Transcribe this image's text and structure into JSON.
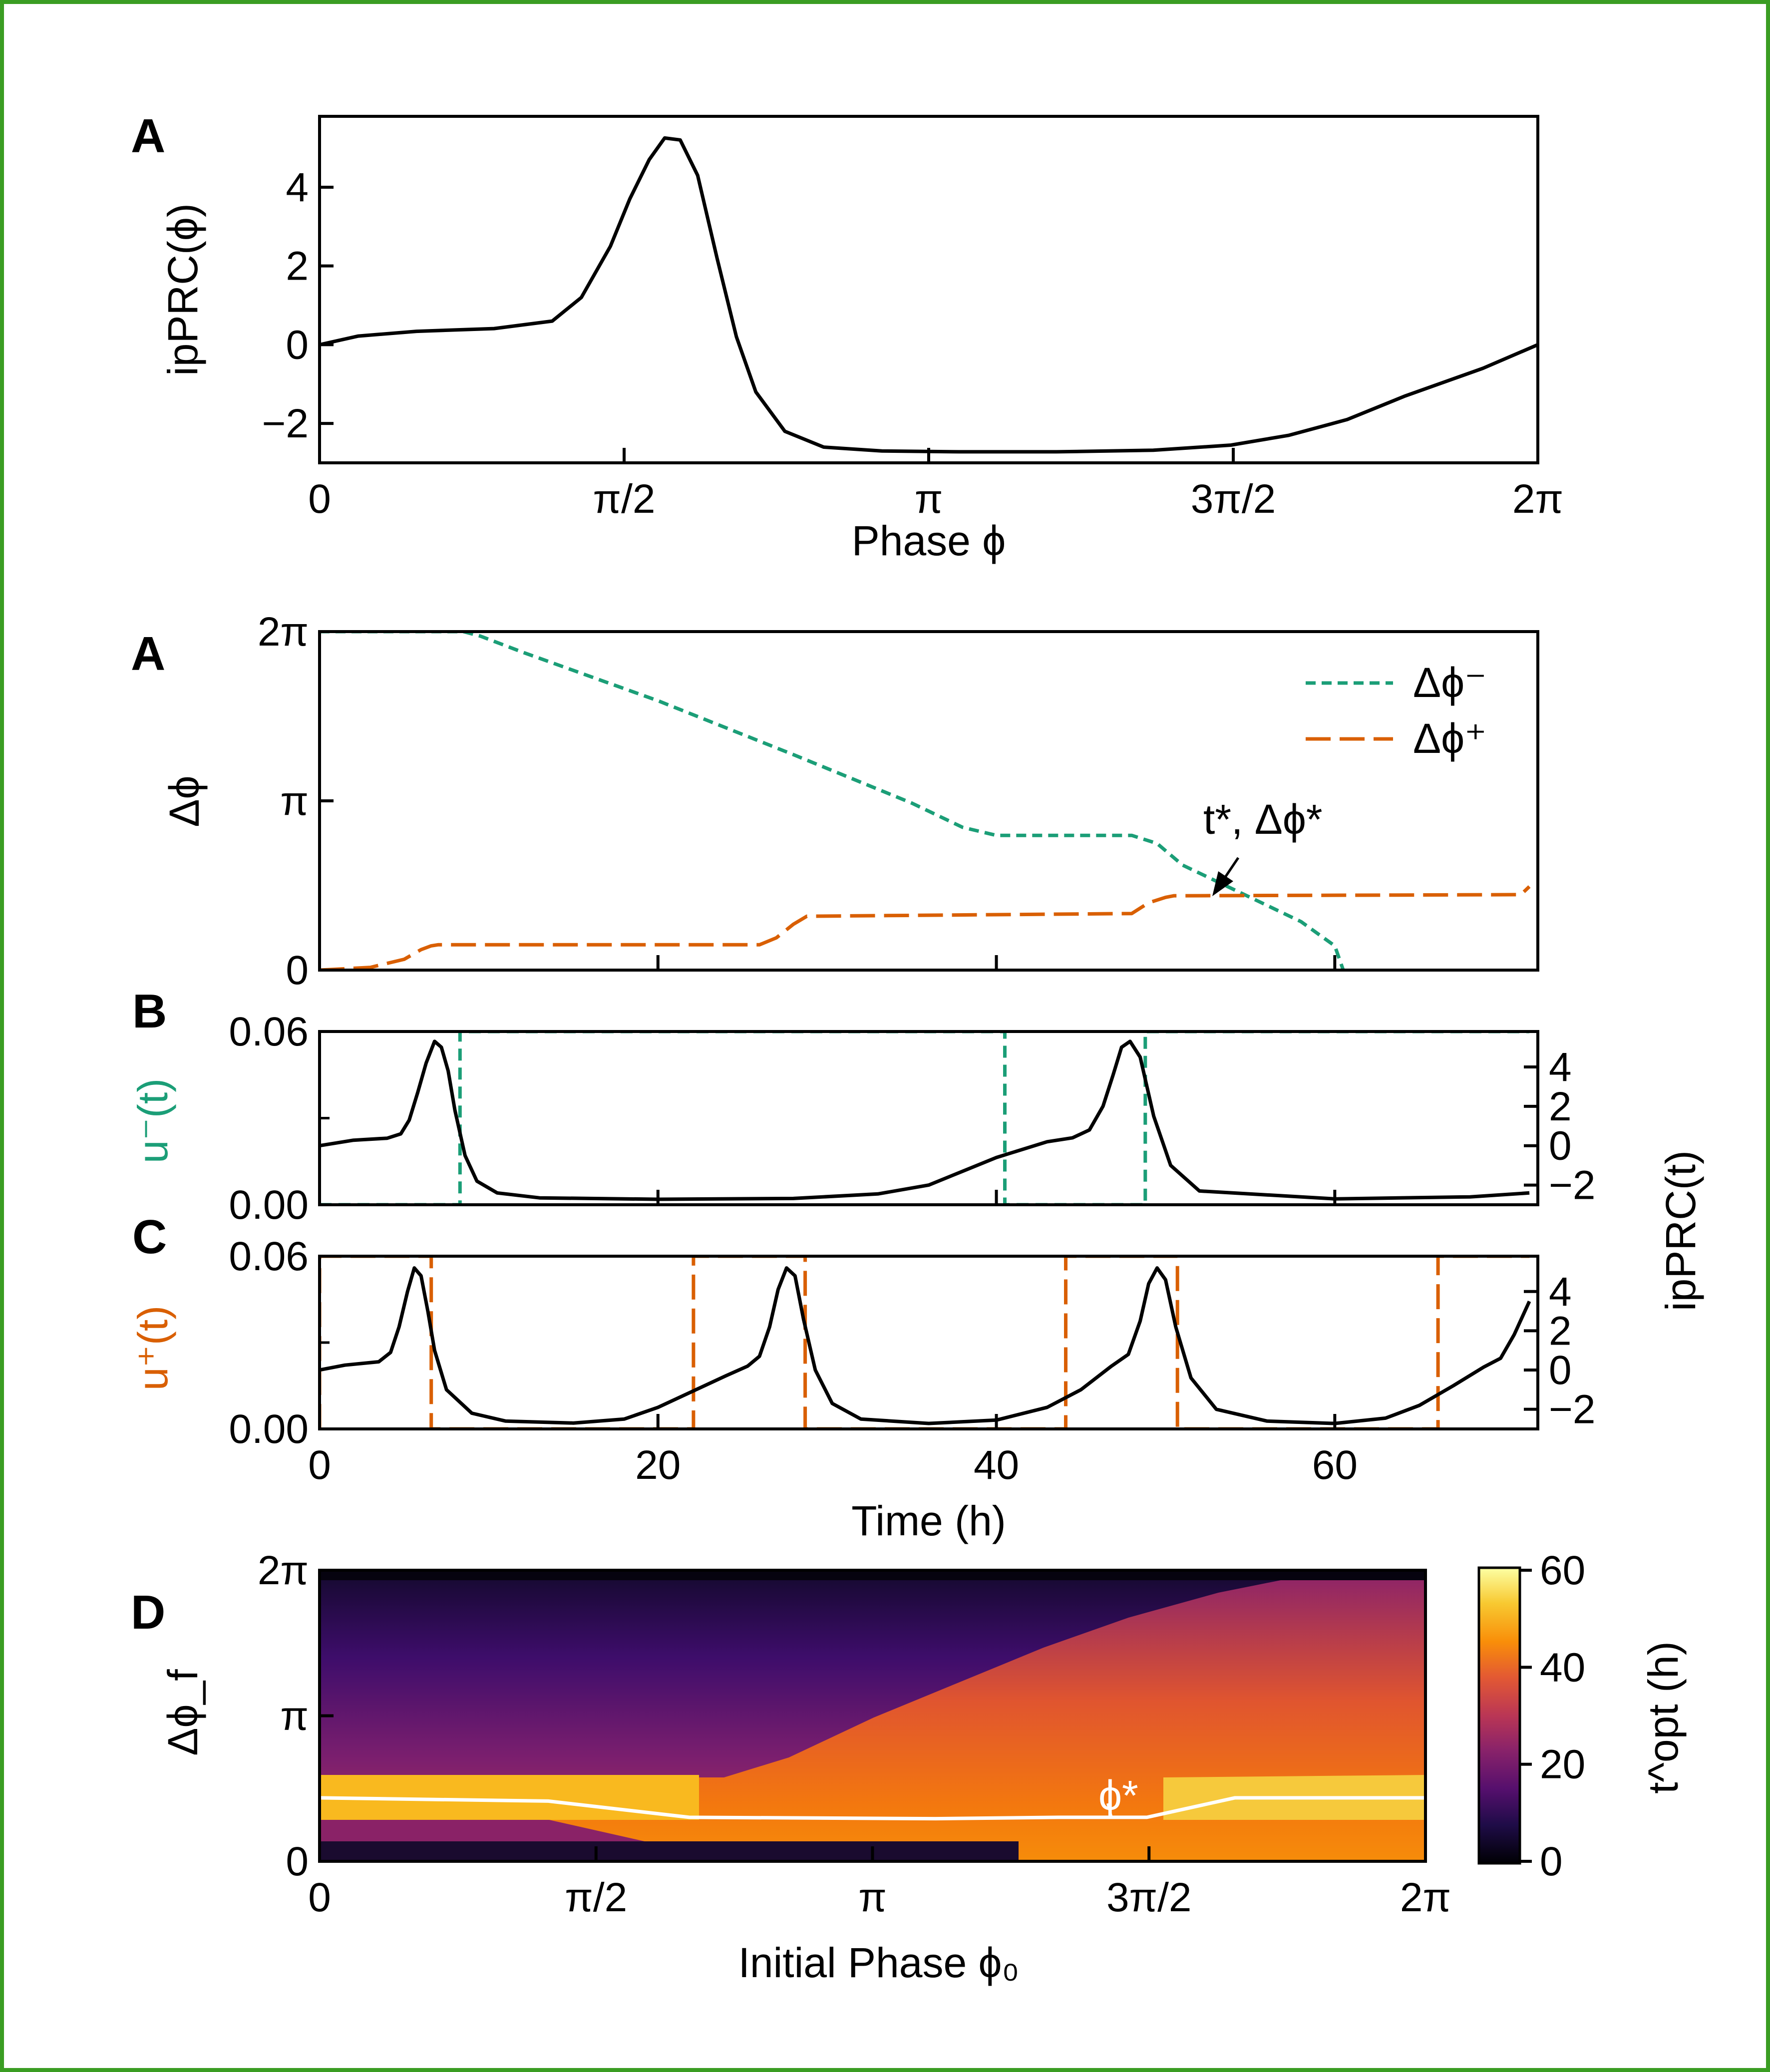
{
  "frame_color": "#3a9d23",
  "colors": {
    "green": "#1b9e77",
    "orange": "#d95f02",
    "black": "#000000",
    "marker": "#ffffff"
  },
  "chart_data": [
    {
      "id": "A",
      "panel_label": "A",
      "type": "line",
      "xlabel": "Phase ϕ",
      "ylabel": "ipPRC(ϕ)",
      "xlim": [
        0,
        6.2832
      ],
      "ylim": [
        -3.0,
        5.8
      ],
      "xticks": [
        "0",
        "π/2",
        "π",
        "3π/2",
        "2π"
      ],
      "yticks": [
        "−2",
        "0",
        "2",
        "4"
      ],
      "series": [
        {
          "color": "#000000",
          "x": [
            0.0,
            0.2,
            0.5,
            0.9,
            1.2,
            1.35,
            1.5,
            1.6,
            1.7,
            1.78,
            1.86,
            1.95,
            2.05,
            2.15,
            2.25,
            2.4,
            2.6,
            2.9,
            3.3,
            3.8,
            4.3,
            4.7,
            5.0,
            5.3,
            5.6,
            6.0,
            6.2832
          ],
          "y": [
            0.0,
            0.22,
            0.34,
            0.41,
            0.6,
            1.2,
            2.5,
            3.7,
            4.7,
            5.25,
            5.2,
            4.3,
            2.2,
            0.2,
            -1.2,
            -2.2,
            -2.6,
            -2.7,
            -2.72,
            -2.72,
            -2.68,
            -2.55,
            -2.3,
            -1.9,
            -1.3,
            -0.6,
            0.0
          ]
        }
      ]
    },
    {
      "id": "A2",
      "panel_label": "A",
      "type": "line",
      "ylabel": "Δϕ",
      "xlim": [
        0,
        72
      ],
      "ylim": [
        0,
        6.2832
      ],
      "yticks": [
        "0",
        "π",
        "2π"
      ],
      "legend_placement": "top-right",
      "annotation": "t*, Δϕ*",
      "annotation_point": [
        51.5,
        1.37
      ],
      "series": [
        {
          "name": "Δϕ⁻",
          "color": "#1b9e77",
          "style": "short-dash",
          "x": [
            0,
            8.5,
            9.5,
            12,
            20,
            28,
            35,
            38,
            40,
            45,
            48,
            49.5,
            51,
            55,
            58,
            60,
            60.5
          ],
          "y": [
            6.2832,
            6.2832,
            6.2,
            5.9,
            5.0,
            4.0,
            3.1,
            2.65,
            2.5,
            2.5,
            2.5,
            2.35,
            1.95,
            1.35,
            0.9,
            0.45,
            0.0
          ]
        },
        {
          "name": "Δϕ⁺",
          "color": "#d95f02",
          "style": "long-dash",
          "x": [
            0,
            3,
            5,
            6,
            6.6,
            7,
            26,
            27,
            28,
            28.8,
            29,
            48,
            49,
            50,
            50.5,
            51,
            71,
            71.5
          ],
          "y": [
            0.0,
            0.05,
            0.2,
            0.38,
            0.45,
            0.47,
            0.47,
            0.6,
            0.85,
            1.0,
            1.0,
            1.05,
            1.25,
            1.35,
            1.38,
            1.38,
            1.4,
            1.55
          ]
        }
      ]
    },
    {
      "id": "B",
      "panel_label": "B",
      "type": "line",
      "ylabel": "u⁻(t)",
      "ylabel_right": "ipPRC(t)",
      "xlim": [
        0,
        72
      ],
      "ylim": [
        0,
        0.06
      ],
      "yticks": [
        "0.00",
        "0.06"
      ],
      "yticks_right": [
        "−2",
        "0",
        "2",
        "4"
      ],
      "series": [
        {
          "name": "u⁻(t)",
          "color": "#1b9e77",
          "style": "dash",
          "x": [
            0,
            8.3,
            8.3,
            40.5,
            40.5,
            48.8,
            48.8,
            71.5
          ],
          "y": [
            0,
            0,
            0.06,
            0.06,
            0,
            0,
            0.06,
            0.06
          ]
        },
        {
          "name": "ipPRC(t)",
          "color": "#000000",
          "axis": "right",
          "x": [
            0,
            2,
            4,
            4.8,
            5.3,
            5.8,
            6.3,
            6.8,
            7.2,
            7.6,
            8.0,
            8.6,
            9.3,
            10.5,
            13,
            20,
            28,
            33,
            36,
            38,
            40,
            43,
            44.5,
            45.5,
            46.3,
            46.9,
            47.4,
            47.9,
            48.5,
            49.3,
            50.3,
            52,
            60,
            68,
            71.5
          ],
          "y": [
            0.0,
            0.28,
            0.38,
            0.6,
            1.3,
            2.7,
            4.2,
            5.3,
            5.0,
            3.8,
            1.8,
            -0.5,
            -1.8,
            -2.4,
            -2.65,
            -2.72,
            -2.68,
            -2.45,
            -2.0,
            -1.3,
            -0.6,
            0.2,
            0.4,
            0.8,
            2.0,
            3.6,
            5.0,
            5.3,
            4.5,
            1.5,
            -1.0,
            -2.3,
            -2.7,
            -2.6,
            -2.4
          ]
        }
      ]
    },
    {
      "id": "C",
      "panel_label": "C",
      "type": "line",
      "ylabel": "u⁺(t)",
      "xlabel": "Time (h)",
      "xlim": [
        0,
        72
      ],
      "ylim": [
        0,
        0.06
      ],
      "xticks": [
        "0",
        "20",
        "40",
        "60"
      ],
      "xtick_values": [
        0,
        20,
        40,
        60
      ],
      "yticks": [
        "0.00",
        "0.06"
      ],
      "yticks_right": [
        "−2",
        "0",
        "2",
        "4"
      ],
      "series": [
        {
          "name": "u⁺(t)",
          "color": "#d95f02",
          "style": "long-dash",
          "x": [
            0,
            0,
            6.6,
            6.6,
            22.1,
            22.1,
            28.7,
            28.7,
            44.1,
            44.1,
            50.7,
            50.7,
            66.1,
            66.1,
            71.5
          ],
          "y": [
            0,
            0.06,
            0.06,
            0,
            0,
            0.06,
            0.06,
            0,
            0,
            0.06,
            0.06,
            0,
            0,
            0.06,
            0.06
          ]
        },
        {
          "name": "ipPRC(t)",
          "color": "#000000",
          "axis": "right",
          "x": [
            0,
            1.5,
            3.5,
            4.2,
            4.7,
            5.2,
            5.6,
            6.0,
            6.4,
            6.8,
            7.5,
            9,
            11,
            15,
            18,
            20,
            22,
            24,
            25.3,
            26,
            26.6,
            27.1,
            27.6,
            28.1,
            28.6,
            29.3,
            30.3,
            32,
            36,
            40,
            43,
            45,
            46.8,
            47.8,
            48.5,
            49.0,
            49.5,
            50.0,
            50.6,
            51.5,
            53,
            56,
            60,
            63,
            65,
            67,
            68.8,
            69.8,
            70.6,
            71.5
          ],
          "y": [
            0.0,
            0.25,
            0.42,
            0.9,
            2.2,
            4.0,
            5.2,
            4.8,
            3.0,
            1.0,
            -1.0,
            -2.2,
            -2.6,
            -2.7,
            -2.5,
            -1.9,
            -1.1,
            -0.3,
            0.2,
            0.7,
            2.2,
            4.1,
            5.2,
            4.8,
            2.6,
            0.0,
            -1.7,
            -2.5,
            -2.72,
            -2.55,
            -1.9,
            -1.0,
            0.2,
            0.8,
            2.5,
            4.4,
            5.2,
            4.6,
            2.2,
            -0.4,
            -2.0,
            -2.6,
            -2.72,
            -2.45,
            -1.8,
            -0.8,
            0.15,
            0.6,
            1.8,
            3.5
          ]
        }
      ]
    },
    {
      "id": "D",
      "panel_label": "D",
      "type": "heatmap",
      "xlabel": "Initial Phase ϕ₀",
      "ylabel": "Δϕ_f",
      "colorbar_label": "t^opt (h)",
      "xlim": [
        0,
        6.2832
      ],
      "ylim": [
        0,
        6.2832
      ],
      "xticks": [
        "0",
        "π/2",
        "π",
        "3π/2",
        "2π"
      ],
      "yticks": [
        "0",
        "π",
        "2π"
      ],
      "colorbar_range": [
        0,
        60
      ],
      "colorbar_ticks": [
        "0",
        "20",
        "40",
        "60"
      ],
      "colormap": "inferno",
      "marker_label": "ϕ*",
      "marker_x": 4.5,
      "series": [
        {
          "name": "ϕ*",
          "color": "#ffffff",
          "x": [
            0.0,
            1.3,
            2.1,
            3.5,
            4.2,
            4.7,
            5.2,
            6.2832
          ],
          "y": [
            1.37,
            1.3,
            0.95,
            0.92,
            0.95,
            0.95,
            1.37,
            1.37
          ]
        }
      ]
    }
  ]
}
